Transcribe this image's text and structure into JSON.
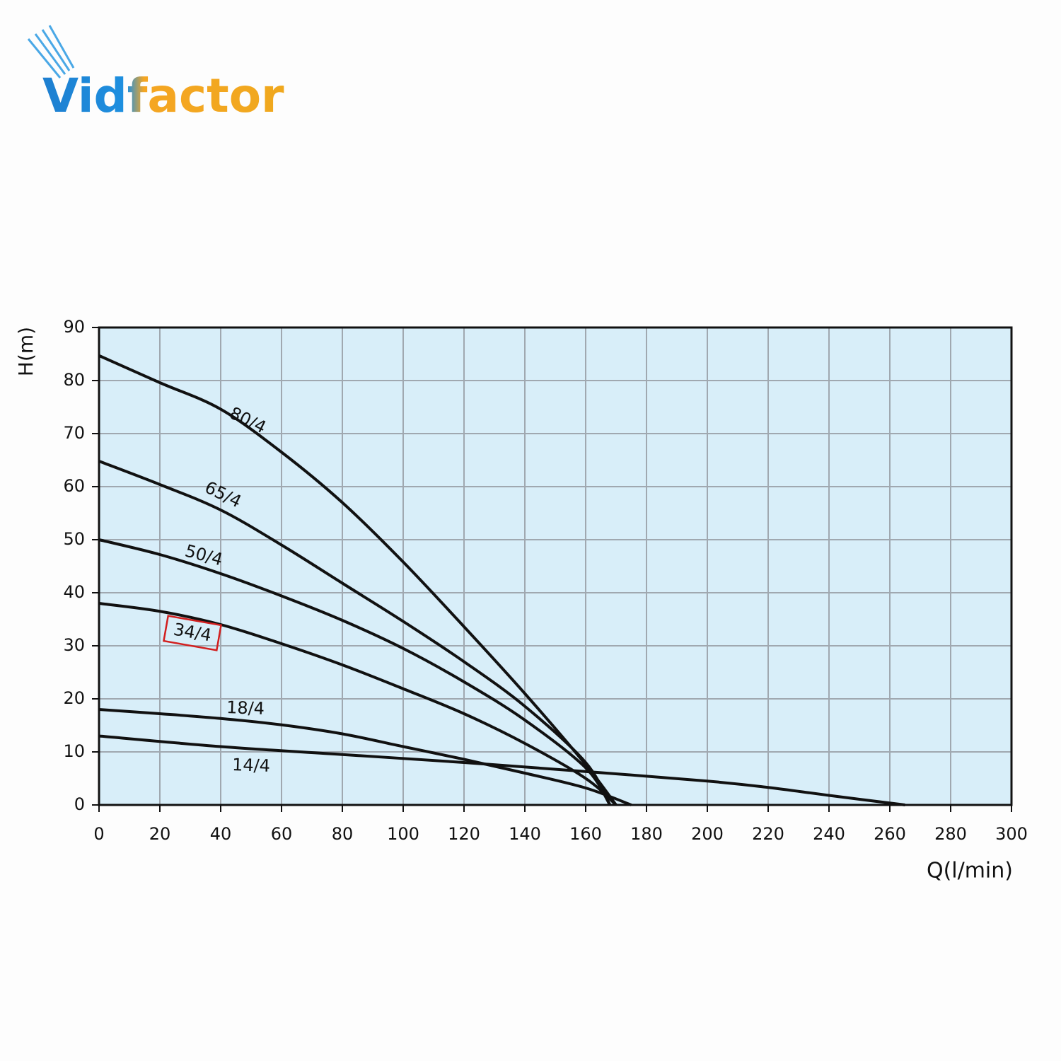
{
  "logo": "Vidfactor",
  "chart_data": {
    "type": "line",
    "y_label": "H(m)",
    "x_label": "Q(l/min)",
    "xlim": [
      0,
      300
    ],
    "xticks": [
      0,
      20,
      40,
      60,
      80,
      100,
      120,
      140,
      160,
      180,
      200,
      220,
      240,
      260,
      280,
      300
    ],
    "ylim": [
      0,
      90
    ],
    "yticks": [
      0,
      10,
      20,
      30,
      40,
      50,
      60,
      70,
      80,
      90
    ],
    "grid": true,
    "background": "#d8eef9",
    "grid_color": "#a0a8b0",
    "series": [
      {
        "name": "80/4",
        "color": "#111111",
        "x": [
          0,
          20,
          40,
          60,
          80,
          100,
          120,
          140,
          160,
          170
        ],
        "values": [
          84.7,
          79.6,
          74.6,
          66.5,
          57,
          45.8,
          33.6,
          21,
          7.6,
          0
        ]
      },
      {
        "name": "65/4",
        "color": "#111111",
        "x": [
          0,
          20,
          40,
          60,
          80,
          100,
          120,
          140,
          160,
          168
        ],
        "values": [
          64.8,
          60.4,
          55.6,
          49,
          41.8,
          34.6,
          27,
          18.6,
          8,
          0
        ]
      },
      {
        "name": "50/4",
        "color": "#111111",
        "x": [
          0,
          20,
          40,
          60,
          80,
          100,
          120,
          140,
          160,
          168
        ],
        "values": [
          50,
          47.2,
          43.6,
          39.4,
          34.8,
          29.5,
          23.2,
          16,
          7,
          0
        ]
      },
      {
        "name": "34/4",
        "color": "#111111",
        "highlighted": true,
        "x": [
          0,
          20,
          40,
          60,
          80,
          100,
          120,
          140,
          160,
          170
        ],
        "values": [
          38,
          36.5,
          34,
          30.4,
          26.4,
          21.9,
          17.2,
          11.6,
          5,
          0
        ]
      },
      {
        "name": "18/4",
        "color": "#111111",
        "x": [
          0,
          20,
          40,
          60,
          80,
          100,
          120,
          140,
          160,
          175
        ],
        "values": [
          18,
          17.2,
          16.3,
          15.1,
          13.4,
          11,
          8.6,
          6,
          3.2,
          0
        ]
      },
      {
        "name": "14/4",
        "color": "#111111",
        "x": [
          0,
          40,
          80,
          120,
          160,
          200,
          220,
          240,
          265
        ],
        "values": [
          13,
          11,
          9.5,
          8,
          6.3,
          4.5,
          3.3,
          1.8,
          0
        ]
      }
    ]
  }
}
